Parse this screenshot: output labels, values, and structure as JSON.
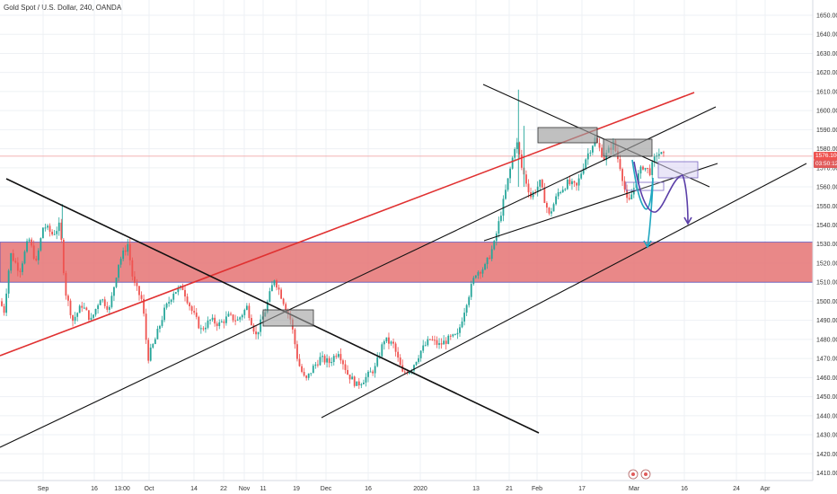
{
  "header": {
    "title": "Gold Spot / U.S. Dollar, 240, OANDA"
  },
  "price_tags": {
    "last_price": "1576.100",
    "countdown": "03:50:12",
    "last_color": "#ef5350",
    "countdown_color": "#e05a5a"
  },
  "chart_data": {
    "type": "candlestick",
    "title": "Gold Spot / U.S. Dollar, 240, OANDA",
    "ylim": [
      1406,
      1658
    ],
    "y_ticks": [
      1410,
      1420,
      1430,
      1440,
      1450,
      1460,
      1470,
      1480,
      1490,
      1500,
      1510,
      1520,
      1530,
      1540,
      1550,
      1560,
      1570,
      1580,
      1590,
      1600,
      1610,
      1620,
      1630,
      1640,
      1650
    ],
    "x_ticks": [
      "Sep",
      "16",
      "13:00",
      "Oct",
      "14",
      "22",
      "Nov",
      "11",
      "19",
      "Dec",
      "16",
      "2020",
      "13",
      "21",
      "Feb",
      "17",
      "Mar",
      "16",
      "24",
      "Apr"
    ],
    "up_color": "#26a69a",
    "down_color": "#ef5350",
    "price_path": [
      {
        "x": 0,
        "y": 1500
      },
      {
        "x": 0.5,
        "y": 1495
      },
      {
        "x": 1.2,
        "y": 1525
      },
      {
        "x": 2.2,
        "y": 1516
      },
      {
        "x": 3.2,
        "y": 1533
      },
      {
        "x": 4.0,
        "y": 1520
      },
      {
        "x": 4.8,
        "y": 1540
      },
      {
        "x": 5.8,
        "y": 1535
      },
      {
        "x": 6.6,
        "y": 1540
      },
      {
        "x": 7.2,
        "y": 1505
      },
      {
        "x": 8.0,
        "y": 1490
      },
      {
        "x": 9.0,
        "y": 1498
      },
      {
        "x": 10.0,
        "y": 1490
      },
      {
        "x": 11.0,
        "y": 1502
      },
      {
        "x": 12.0,
        "y": 1496
      },
      {
        "x": 13.0,
        "y": 1520
      },
      {
        "x": 14.0,
        "y": 1530
      },
      {
        "x": 14.6,
        "y": 1510
      },
      {
        "x": 15.6,
        "y": 1500
      },
      {
        "x": 16.2,
        "y": 1470
      },
      {
        "x": 17.0,
        "y": 1480
      },
      {
        "x": 18.0,
        "y": 1495
      },
      {
        "x": 19.0,
        "y": 1505
      },
      {
        "x": 20.0,
        "y": 1507
      },
      {
        "x": 21.0,
        "y": 1495
      },
      {
        "x": 22.0,
        "y": 1485
      },
      {
        "x": 23.0,
        "y": 1490
      },
      {
        "x": 24.0,
        "y": 1488
      },
      {
        "x": 25.0,
        "y": 1492
      },
      {
        "x": 26.0,
        "y": 1490
      },
      {
        "x": 27.0,
        "y": 1497
      },
      {
        "x": 28.0,
        "y": 1482
      },
      {
        "x": 29.0,
        "y": 1495
      },
      {
        "x": 30.0,
        "y": 1512
      },
      {
        "x": 31.0,
        "y": 1500
      },
      {
        "x": 31.8,
        "y": 1490
      },
      {
        "x": 32.6,
        "y": 1468
      },
      {
        "x": 33.4,
        "y": 1458
      },
      {
        "x": 34.2,
        "y": 1465
      },
      {
        "x": 35.0,
        "y": 1470
      },
      {
        "x": 36.0,
        "y": 1468
      },
      {
        "x": 37.0,
        "y": 1474
      },
      {
        "x": 38.0,
        "y": 1462
      },
      {
        "x": 39.0,
        "y": 1456
      },
      {
        "x": 40.0,
        "y": 1460
      },
      {
        "x": 41.0,
        "y": 1465
      },
      {
        "x": 42.0,
        "y": 1480
      },
      {
        "x": 43.0,
        "y": 1477
      },
      {
        "x": 44.0,
        "y": 1462
      },
      {
        "x": 45.0,
        "y": 1465
      },
      {
        "x": 46.0,
        "y": 1474
      },
      {
        "x": 47.0,
        "y": 1480
      },
      {
        "x": 48.0,
        "y": 1477
      },
      {
        "x": 49.0,
        "y": 1480
      },
      {
        "x": 50.0,
        "y": 1482
      },
      {
        "x": 51.0,
        "y": 1500
      },
      {
        "x": 52.0,
        "y": 1515
      },
      {
        "x": 53.0,
        "y": 1518
      },
      {
        "x": 54.0,
        "y": 1530
      },
      {
        "x": 55.0,
        "y": 1552
      },
      {
        "x": 56.0,
        "y": 1575
      },
      {
        "x": 56.4,
        "y": 1585
      },
      {
        "x": 57.0,
        "y": 1570
      },
      {
        "x": 58.0,
        "y": 1555
      },
      {
        "x": 59.0,
        "y": 1562
      },
      {
        "x": 60.0,
        "y": 1545
      },
      {
        "x": 61.0,
        "y": 1557
      },
      {
        "x": 62.0,
        "y": 1562
      },
      {
        "x": 63.0,
        "y": 1560
      },
      {
        "x": 64.0,
        "y": 1575
      },
      {
        "x": 65.0,
        "y": 1585
      },
      {
        "x": 66.0,
        "y": 1575
      },
      {
        "x": 67.0,
        "y": 1583
      },
      {
        "x": 67.8,
        "y": 1570
      },
      {
        "x": 68.6,
        "y": 1550
      },
      {
        "x": 69.4,
        "y": 1562
      },
      {
        "x": 70.2,
        "y": 1571
      },
      {
        "x": 71.0,
        "y": 1568
      },
      {
        "x": 71.8,
        "y": 1578
      },
      {
        "x": 72.6,
        "y": 1576
      }
    ],
    "spikes": [
      {
        "x": 6.6,
        "high": 1551,
        "low": 1533
      },
      {
        "x": 56.4,
        "high": 1611,
        "low": 1560
      },
      {
        "x": 57.0,
        "high": 1592,
        "low": 1560
      }
    ],
    "drawings": {
      "red_channel_line": {
        "color": "#e03131"
      },
      "shaded_zone": {
        "top": 1531,
        "bottom": 1510,
        "fill": "#e57373"
      },
      "rectangles": [
        "gray",
        "gray",
        "gray",
        "lavender",
        "lavender"
      ],
      "projection_paths": [
        "teal",
        "purple"
      ]
    }
  }
}
